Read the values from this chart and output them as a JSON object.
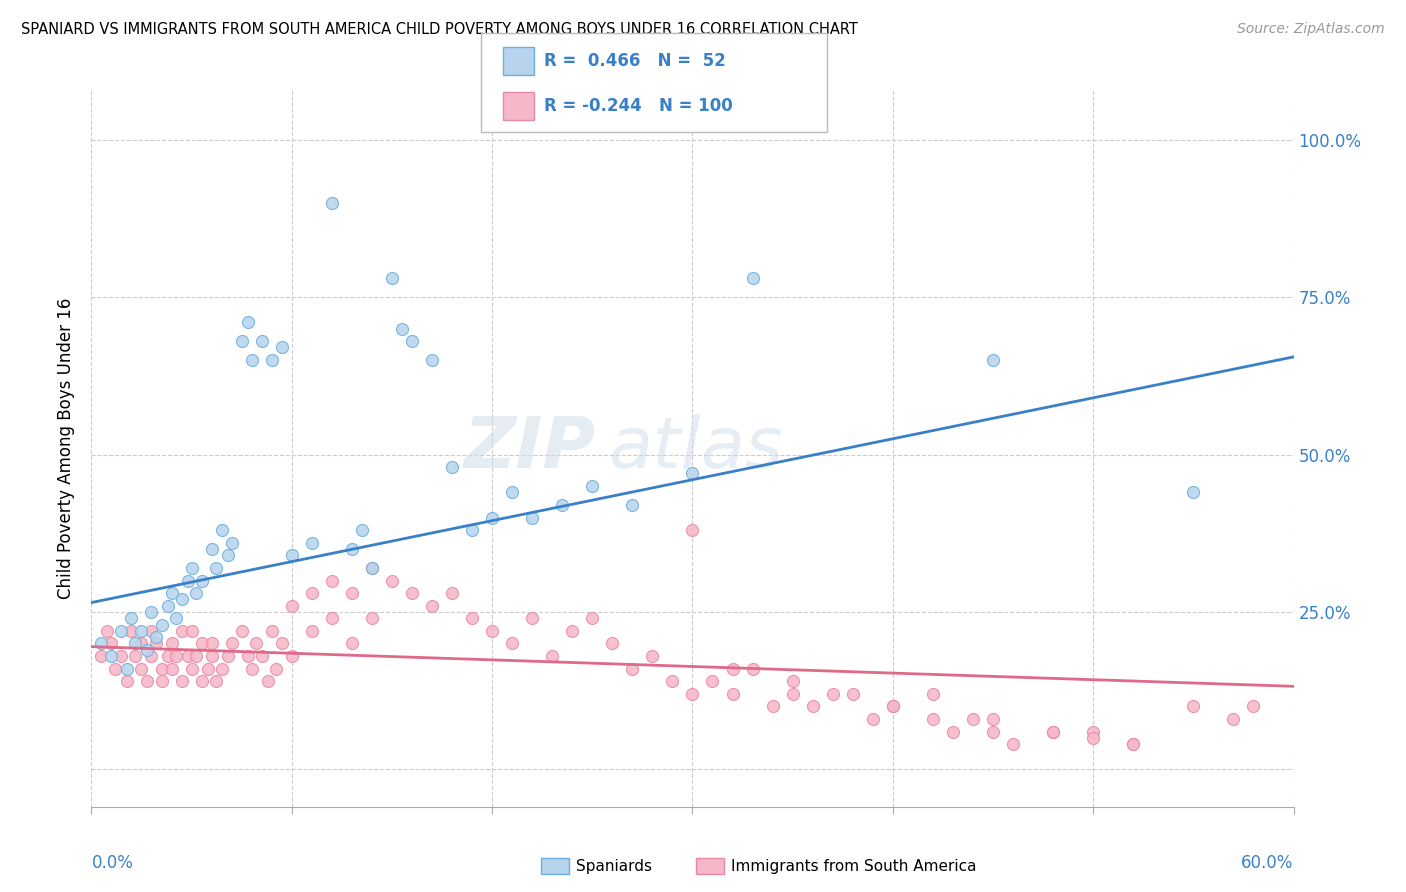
{
  "title": "SPANIARD VS IMMIGRANTS FROM SOUTH AMERICA CHILD POVERTY AMONG BOYS UNDER 16 CORRELATION CHART",
  "source": "Source: ZipAtlas.com",
  "ylabel": "Child Poverty Among Boys Under 16",
  "ytick_vals": [
    0.0,
    0.25,
    0.5,
    0.75,
    1.0
  ],
  "ytick_labels": [
    "",
    "25.0%",
    "50.0%",
    "75.0%",
    "100.0%"
  ],
  "xlim": [
    0.0,
    0.6
  ],
  "ylim": [
    -0.06,
    1.08
  ],
  "blue_fill": "#b8d4ec",
  "pink_fill": "#f5b8c8",
  "blue_edge": "#6aaee0",
  "pink_edge": "#e888a8",
  "blue_line": "#3a80c8",
  "pink_line": "#e06888",
  "blue_R": 0.466,
  "blue_N": 52,
  "pink_R": -0.244,
  "pink_N": 100,
  "watermark_zip": "ZIP",
  "watermark_atlas": "atlas",
  "legend_label_blue": "Spaniards",
  "legend_label_pink": "Immigrants from South America",
  "blue_x": [
    0.005,
    0.01,
    0.015,
    0.018,
    0.02,
    0.022,
    0.025,
    0.028,
    0.03,
    0.032,
    0.035,
    0.038,
    0.04,
    0.042,
    0.045,
    0.048,
    0.05,
    0.052,
    0.055,
    0.06,
    0.062,
    0.065,
    0.068,
    0.07,
    0.075,
    0.078,
    0.08,
    0.085,
    0.09,
    0.095,
    0.1,
    0.11,
    0.12,
    0.13,
    0.135,
    0.14,
    0.15,
    0.155,
    0.16,
    0.17,
    0.18,
    0.19,
    0.2,
    0.21,
    0.22,
    0.235,
    0.25,
    0.27,
    0.3,
    0.33,
    0.45,
    0.55
  ],
  "blue_y": [
    0.2,
    0.18,
    0.22,
    0.16,
    0.24,
    0.2,
    0.22,
    0.19,
    0.25,
    0.21,
    0.23,
    0.26,
    0.28,
    0.24,
    0.27,
    0.3,
    0.32,
    0.28,
    0.3,
    0.35,
    0.32,
    0.38,
    0.34,
    0.36,
    0.68,
    0.71,
    0.65,
    0.68,
    0.65,
    0.67,
    0.34,
    0.36,
    0.9,
    0.35,
    0.38,
    0.32,
    0.78,
    0.7,
    0.68,
    0.65,
    0.48,
    0.38,
    0.4,
    0.44,
    0.4,
    0.42,
    0.45,
    0.42,
    0.47,
    0.78,
    0.65,
    0.44
  ],
  "pink_x": [
    0.005,
    0.008,
    0.01,
    0.012,
    0.015,
    0.018,
    0.02,
    0.022,
    0.025,
    0.025,
    0.028,
    0.03,
    0.03,
    0.032,
    0.035,
    0.035,
    0.038,
    0.04,
    0.04,
    0.042,
    0.045,
    0.045,
    0.048,
    0.05,
    0.05,
    0.052,
    0.055,
    0.055,
    0.058,
    0.06,
    0.06,
    0.062,
    0.065,
    0.068,
    0.07,
    0.075,
    0.078,
    0.08,
    0.082,
    0.085,
    0.088,
    0.09,
    0.092,
    0.095,
    0.1,
    0.1,
    0.11,
    0.11,
    0.12,
    0.12,
    0.13,
    0.13,
    0.14,
    0.14,
    0.15,
    0.16,
    0.17,
    0.18,
    0.19,
    0.2,
    0.21,
    0.22,
    0.23,
    0.24,
    0.25,
    0.26,
    0.27,
    0.28,
    0.29,
    0.3,
    0.31,
    0.32,
    0.33,
    0.34,
    0.35,
    0.36,
    0.38,
    0.39,
    0.4,
    0.42,
    0.43,
    0.44,
    0.45,
    0.46,
    0.48,
    0.5,
    0.52,
    0.3,
    0.32,
    0.35,
    0.37,
    0.4,
    0.42,
    0.45,
    0.48,
    0.5,
    0.52,
    0.55,
    0.57,
    0.58
  ],
  "pink_y": [
    0.18,
    0.22,
    0.2,
    0.16,
    0.18,
    0.14,
    0.22,
    0.18,
    0.2,
    0.16,
    0.14,
    0.22,
    0.18,
    0.2,
    0.16,
    0.14,
    0.18,
    0.2,
    0.16,
    0.18,
    0.22,
    0.14,
    0.18,
    0.22,
    0.16,
    0.18,
    0.2,
    0.14,
    0.16,
    0.18,
    0.2,
    0.14,
    0.16,
    0.18,
    0.2,
    0.22,
    0.18,
    0.16,
    0.2,
    0.18,
    0.14,
    0.22,
    0.16,
    0.2,
    0.26,
    0.18,
    0.28,
    0.22,
    0.3,
    0.24,
    0.28,
    0.2,
    0.32,
    0.24,
    0.3,
    0.28,
    0.26,
    0.28,
    0.24,
    0.22,
    0.2,
    0.24,
    0.18,
    0.22,
    0.24,
    0.2,
    0.16,
    0.18,
    0.14,
    0.12,
    0.14,
    0.12,
    0.16,
    0.1,
    0.12,
    0.1,
    0.12,
    0.08,
    0.1,
    0.08,
    0.06,
    0.08,
    0.06,
    0.04,
    0.06,
    0.06,
    0.04,
    0.38,
    0.16,
    0.14,
    0.12,
    0.1,
    0.12,
    0.08,
    0.06,
    0.05,
    0.04,
    0.1,
    0.08,
    0.1
  ]
}
